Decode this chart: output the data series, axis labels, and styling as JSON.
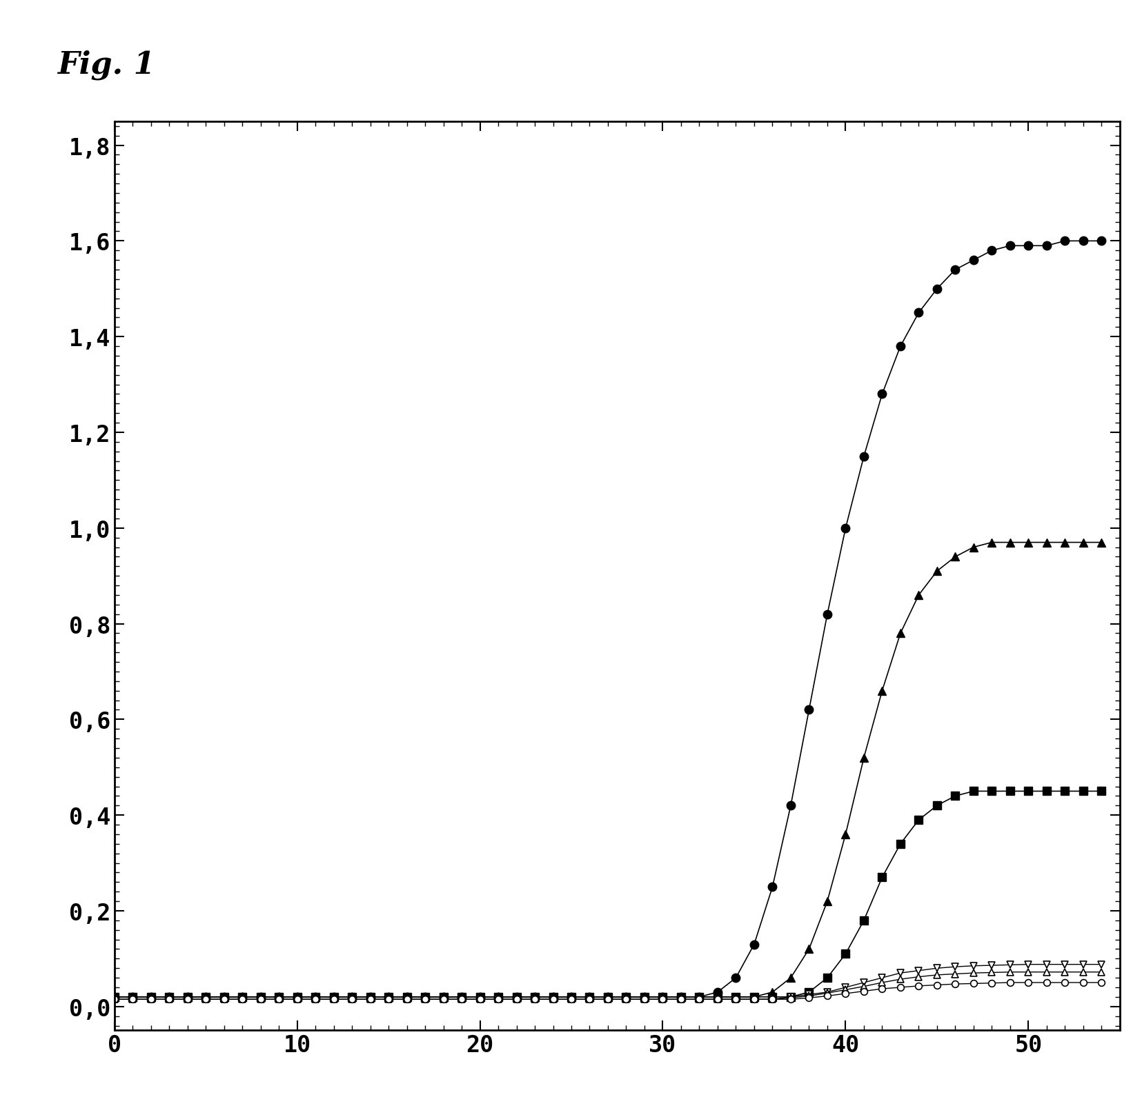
{
  "title": "Fig. 1",
  "xlim": [
    0,
    55
  ],
  "ylim": [
    -0.05,
    1.85
  ],
  "xticks": [
    0,
    10,
    20,
    30,
    40,
    50
  ],
  "yticks": [
    0.0,
    0.2,
    0.4,
    0.6,
    0.8,
    1.0,
    1.2,
    1.4,
    1.6,
    1.8
  ],
  "ytick_labels": [
    "0,0",
    "0,2",
    "0,4",
    "0,6",
    "0,8",
    "1,0",
    "1,2",
    "1,4",
    "1,6",
    "1,8"
  ],
  "background_color": "#ffffff",
  "series": [
    {
      "name": "filled_circle",
      "marker": "o",
      "filled": true,
      "color": "#000000",
      "linewidth": 1.2,
      "markersize": 9,
      "x": [
        0,
        1,
        2,
        3,
        4,
        5,
        6,
        7,
        8,
        9,
        10,
        11,
        12,
        13,
        14,
        15,
        16,
        17,
        18,
        19,
        20,
        21,
        22,
        23,
        24,
        25,
        26,
        27,
        28,
        29,
        30,
        31,
        32,
        33,
        34,
        35,
        36,
        37,
        38,
        39,
        40,
        41,
        42,
        43,
        44,
        45,
        46,
        47,
        48,
        49,
        50,
        51,
        52,
        53,
        54
      ],
      "y": [
        0.02,
        0.02,
        0.02,
        0.02,
        0.02,
        0.02,
        0.02,
        0.02,
        0.02,
        0.02,
        0.02,
        0.02,
        0.02,
        0.02,
        0.02,
        0.02,
        0.02,
        0.02,
        0.02,
        0.02,
        0.02,
        0.02,
        0.02,
        0.02,
        0.02,
        0.02,
        0.02,
        0.02,
        0.02,
        0.02,
        0.02,
        0.02,
        0.02,
        0.03,
        0.06,
        0.13,
        0.25,
        0.42,
        0.62,
        0.82,
        1.0,
        1.15,
        1.28,
        1.38,
        1.45,
        1.5,
        1.54,
        1.56,
        1.58,
        1.59,
        1.59,
        1.59,
        1.6,
        1.6,
        1.6
      ]
    },
    {
      "name": "filled_triangle",
      "marker": "^",
      "filled": true,
      "color": "#000000",
      "linewidth": 1.2,
      "markersize": 9,
      "x": [
        0,
        1,
        2,
        3,
        4,
        5,
        6,
        7,
        8,
        9,
        10,
        11,
        12,
        13,
        14,
        15,
        16,
        17,
        18,
        19,
        20,
        21,
        22,
        23,
        24,
        25,
        26,
        27,
        28,
        29,
        30,
        31,
        32,
        33,
        34,
        35,
        36,
        37,
        38,
        39,
        40,
        41,
        42,
        43,
        44,
        45,
        46,
        47,
        48,
        49,
        50,
        51,
        52,
        53,
        54
      ],
      "y": [
        0.02,
        0.02,
        0.02,
        0.02,
        0.02,
        0.02,
        0.02,
        0.02,
        0.02,
        0.02,
        0.02,
        0.02,
        0.02,
        0.02,
        0.02,
        0.02,
        0.02,
        0.02,
        0.02,
        0.02,
        0.02,
        0.02,
        0.02,
        0.02,
        0.02,
        0.02,
        0.02,
        0.02,
        0.02,
        0.02,
        0.02,
        0.02,
        0.02,
        0.02,
        0.02,
        0.02,
        0.03,
        0.06,
        0.12,
        0.22,
        0.36,
        0.52,
        0.66,
        0.78,
        0.86,
        0.91,
        0.94,
        0.96,
        0.97,
        0.97,
        0.97,
        0.97,
        0.97,
        0.97,
        0.97
      ]
    },
    {
      "name": "filled_square",
      "marker": "s",
      "filled": true,
      "color": "#000000",
      "linewidth": 1.2,
      "markersize": 8,
      "x": [
        0,
        1,
        2,
        3,
        4,
        5,
        6,
        7,
        8,
        9,
        10,
        11,
        12,
        13,
        14,
        15,
        16,
        17,
        18,
        19,
        20,
        21,
        22,
        23,
        24,
        25,
        26,
        27,
        28,
        29,
        30,
        31,
        32,
        33,
        34,
        35,
        36,
        37,
        38,
        39,
        40,
        41,
        42,
        43,
        44,
        45,
        46,
        47,
        48,
        49,
        50,
        51,
        52,
        53,
        54
      ],
      "y": [
        0.02,
        0.02,
        0.02,
        0.02,
        0.02,
        0.02,
        0.02,
        0.02,
        0.02,
        0.02,
        0.02,
        0.02,
        0.02,
        0.02,
        0.02,
        0.02,
        0.02,
        0.02,
        0.02,
        0.02,
        0.02,
        0.02,
        0.02,
        0.02,
        0.02,
        0.02,
        0.02,
        0.02,
        0.02,
        0.02,
        0.02,
        0.02,
        0.02,
        0.02,
        0.02,
        0.02,
        0.02,
        0.02,
        0.03,
        0.06,
        0.11,
        0.18,
        0.27,
        0.34,
        0.39,
        0.42,
        0.44,
        0.45,
        0.45,
        0.45,
        0.45,
        0.45,
        0.45,
        0.45,
        0.45
      ]
    },
    {
      "name": "open_triangle_down",
      "marker": "v",
      "filled": false,
      "color": "#000000",
      "linewidth": 1.0,
      "markersize": 7,
      "x": [
        0,
        1,
        2,
        3,
        4,
        5,
        6,
        7,
        8,
        9,
        10,
        11,
        12,
        13,
        14,
        15,
        16,
        17,
        18,
        19,
        20,
        21,
        22,
        23,
        24,
        25,
        26,
        27,
        28,
        29,
        30,
        31,
        32,
        33,
        34,
        35,
        36,
        37,
        38,
        39,
        40,
        41,
        42,
        43,
        44,
        45,
        46,
        47,
        48,
        49,
        50,
        51,
        52,
        53,
        54
      ],
      "y": [
        0.015,
        0.015,
        0.015,
        0.015,
        0.015,
        0.015,
        0.015,
        0.015,
        0.015,
        0.015,
        0.015,
        0.015,
        0.015,
        0.015,
        0.015,
        0.015,
        0.015,
        0.015,
        0.015,
        0.015,
        0.015,
        0.015,
        0.015,
        0.015,
        0.015,
        0.015,
        0.015,
        0.015,
        0.015,
        0.015,
        0.015,
        0.015,
        0.015,
        0.015,
        0.015,
        0.015,
        0.015,
        0.02,
        0.025,
        0.03,
        0.04,
        0.05,
        0.06,
        0.07,
        0.075,
        0.08,
        0.083,
        0.085,
        0.086,
        0.087,
        0.088,
        0.088,
        0.088,
        0.088,
        0.088
      ]
    },
    {
      "name": "open_triangle_up",
      "marker": "^",
      "filled": false,
      "color": "#000000",
      "linewidth": 1.0,
      "markersize": 7,
      "x": [
        0,
        1,
        2,
        3,
        4,
        5,
        6,
        7,
        8,
        9,
        10,
        11,
        12,
        13,
        14,
        15,
        16,
        17,
        18,
        19,
        20,
        21,
        22,
        23,
        24,
        25,
        26,
        27,
        28,
        29,
        30,
        31,
        32,
        33,
        34,
        35,
        36,
        37,
        38,
        39,
        40,
        41,
        42,
        43,
        44,
        45,
        46,
        47,
        48,
        49,
        50,
        51,
        52,
        53,
        54
      ],
      "y": [
        0.015,
        0.015,
        0.015,
        0.015,
        0.015,
        0.015,
        0.015,
        0.015,
        0.015,
        0.015,
        0.015,
        0.015,
        0.015,
        0.015,
        0.015,
        0.015,
        0.015,
        0.015,
        0.015,
        0.015,
        0.015,
        0.015,
        0.015,
        0.015,
        0.015,
        0.015,
        0.015,
        0.015,
        0.015,
        0.015,
        0.015,
        0.015,
        0.015,
        0.015,
        0.015,
        0.015,
        0.015,
        0.018,
        0.022,
        0.028,
        0.035,
        0.042,
        0.05,
        0.057,
        0.062,
        0.066,
        0.068,
        0.07,
        0.071,
        0.072,
        0.072,
        0.072,
        0.072,
        0.072,
        0.072
      ]
    },
    {
      "name": "open_circle",
      "marker": "o",
      "filled": false,
      "color": "#000000",
      "linewidth": 1.0,
      "markersize": 7,
      "x": [
        0,
        1,
        2,
        3,
        4,
        5,
        6,
        7,
        8,
        9,
        10,
        11,
        12,
        13,
        14,
        15,
        16,
        17,
        18,
        19,
        20,
        21,
        22,
        23,
        24,
        25,
        26,
        27,
        28,
        29,
        30,
        31,
        32,
        33,
        34,
        35,
        36,
        37,
        38,
        39,
        40,
        41,
        42,
        43,
        44,
        45,
        46,
        47,
        48,
        49,
        50,
        51,
        52,
        53,
        54
      ],
      "y": [
        0.015,
        0.015,
        0.015,
        0.015,
        0.015,
        0.015,
        0.015,
        0.015,
        0.015,
        0.015,
        0.015,
        0.015,
        0.015,
        0.015,
        0.015,
        0.015,
        0.015,
        0.015,
        0.015,
        0.015,
        0.015,
        0.015,
        0.015,
        0.015,
        0.015,
        0.015,
        0.015,
        0.015,
        0.015,
        0.015,
        0.015,
        0.015,
        0.015,
        0.015,
        0.015,
        0.015,
        0.015,
        0.015,
        0.018,
        0.022,
        0.027,
        0.032,
        0.037,
        0.04,
        0.043,
        0.045,
        0.047,
        0.048,
        0.049,
        0.05,
        0.05,
        0.05,
        0.05,
        0.05,
        0.05
      ]
    }
  ]
}
